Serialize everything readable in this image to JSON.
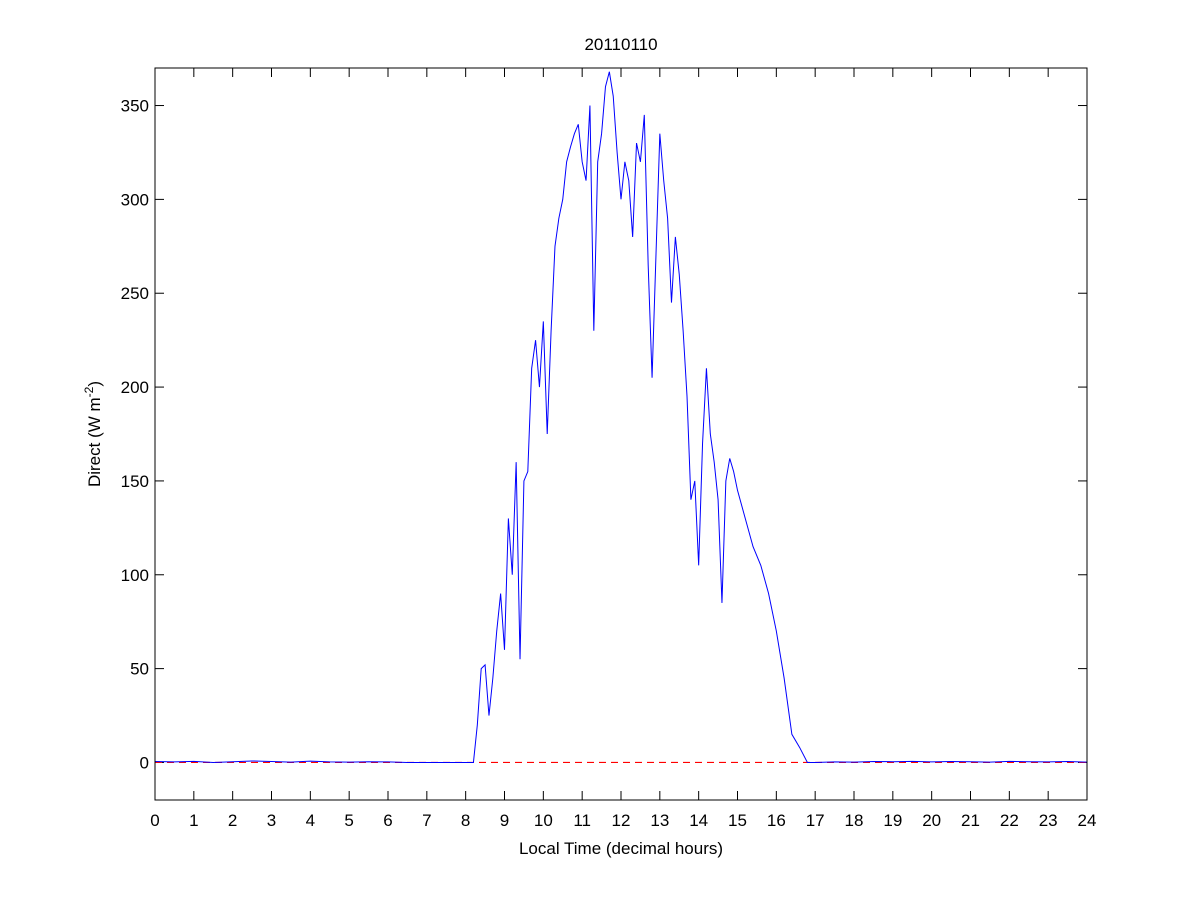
{
  "chart_data": {
    "type": "line",
    "title": "20110110",
    "x_label": "Local Time (decimal hours)",
    "y_label": {
      "text": "Direct (W m",
      "superscript": "-2",
      "suffix": ")"
    },
    "x": [
      0,
      0.5,
      1,
      1.5,
      2,
      2.5,
      3,
      3.5,
      4,
      4.5,
      5,
      5.5,
      6,
      6.5,
      7,
      7.5,
      8,
      8.2,
      8.3,
      8.4,
      8.5,
      8.6,
      8.7,
      8.8,
      8.9,
      9.0,
      9.1,
      9.2,
      9.3,
      9.4,
      9.5,
      9.6,
      9.7,
      9.8,
      9.9,
      10.0,
      10.1,
      10.2,
      10.3,
      10.4,
      10.5,
      10.6,
      10.7,
      10.8,
      10.9,
      11.0,
      11.1,
      11.2,
      11.3,
      11.4,
      11.5,
      11.6,
      11.7,
      11.8,
      11.9,
      12.0,
      12.1,
      12.2,
      12.3,
      12.4,
      12.5,
      12.6,
      12.7,
      12.8,
      12.9,
      13.0,
      13.1,
      13.2,
      13.3,
      13.4,
      13.5,
      13.6,
      13.7,
      13.8,
      13.9,
      14.0,
      14.1,
      14.2,
      14.3,
      14.4,
      14.5,
      14.6,
      14.7,
      14.8,
      14.9,
      15.0,
      15.2,
      15.4,
      15.6,
      15.8,
      16.0,
      16.2,
      16.4,
      16.6,
      16.8,
      17.0,
      17.5,
      18,
      18.5,
      19,
      19.5,
      20,
      20.5,
      21,
      21.5,
      22,
      22.5,
      23,
      23.5,
      24
    ],
    "series": [
      {
        "name": "Direct",
        "color": "#0000ff",
        "values": [
          0.5,
          0.3,
          0.6,
          0,
          0.4,
          0.8,
          0.5,
          0.2,
          0.7,
          0.3,
          0.2,
          0.4,
          0.3,
          0,
          0,
          0,
          0,
          0,
          20,
          50,
          52,
          25,
          45,
          70,
          90,
          60,
          130,
          100,
          160,
          55,
          150,
          155,
          210,
          225,
          200,
          235,
          175,
          230,
          275,
          290,
          300,
          320,
          328,
          335,
          340,
          320,
          310,
          350,
          230,
          320,
          335,
          360,
          368,
          355,
          325,
          300,
          320,
          310,
          280,
          330,
          320,
          345,
          265,
          205,
          270,
          335,
          310,
          290,
          245,
          280,
          260,
          230,
          195,
          140,
          150,
          105,
          170,
          210,
          175,
          160,
          140,
          85,
          150,
          162,
          155,
          145,
          130,
          115,
          105,
          90,
          70,
          45,
          15,
          8,
          0,
          0,
          0.3,
          0.2,
          0.5,
          0.4,
          0.6,
          0.3,
          0.5,
          0.4,
          0.2,
          0.6,
          0.4,
          0.3,
          0.5,
          0.2
        ]
      }
    ],
    "reference_line": {
      "value": 0,
      "color": "#ff0000",
      "dashed": true
    },
    "xlim": [
      0,
      24
    ],
    "xticks": [
      0,
      1,
      2,
      3,
      4,
      5,
      6,
      7,
      8,
      9,
      10,
      11,
      12,
      13,
      14,
      15,
      16,
      17,
      18,
      19,
      20,
      21,
      22,
      23,
      24
    ],
    "ylim": [
      -20,
      370
    ],
    "yticks": [
      0,
      50,
      100,
      150,
      200,
      250,
      300,
      350
    ],
    "grid": false
  }
}
